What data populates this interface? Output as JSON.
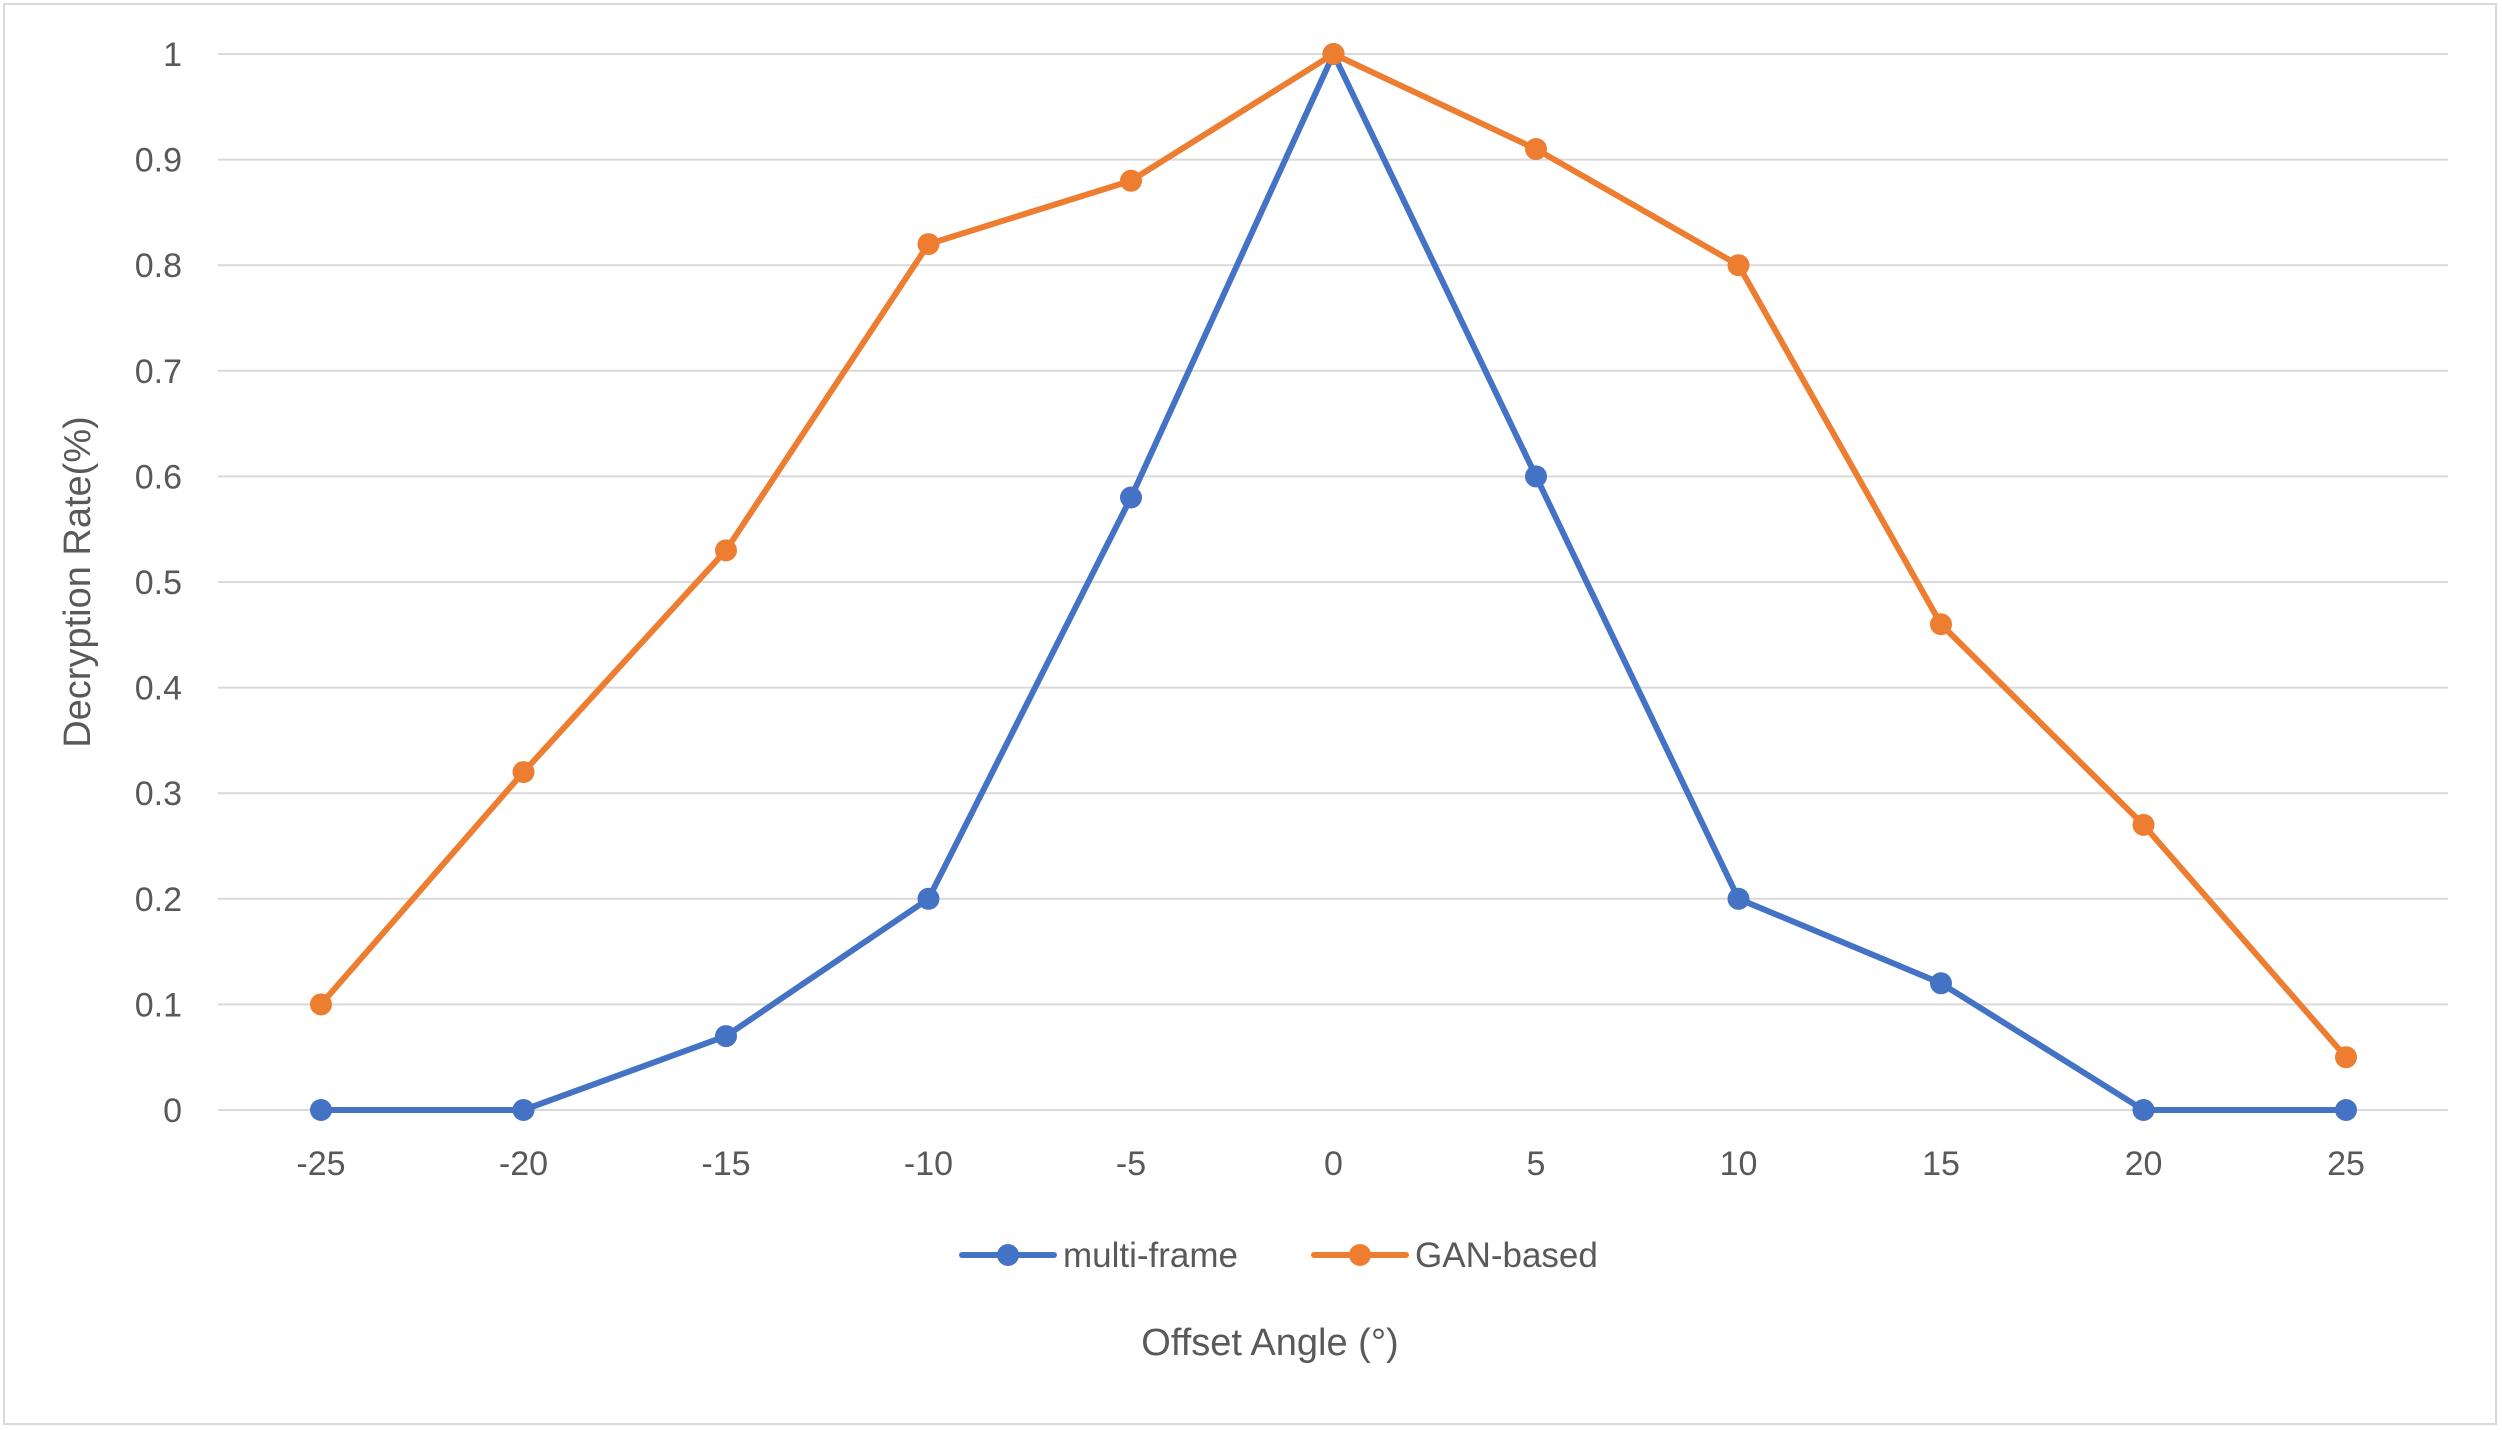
{
  "chart_data": {
    "type": "line",
    "title": "",
    "xlabel": "Offset Angle (°)",
    "ylabel": "Decryption Rate(%)",
    "x": [
      -25,
      -20,
      -15,
      -10,
      -5,
      0,
      5,
      10,
      15,
      20,
      25
    ],
    "x_tick_labels": [
      "-25",
      "-20",
      "-15",
      "-10",
      "-5",
      "0",
      "5",
      "10",
      "15",
      "20",
      "25"
    ],
    "y_ticks": [
      0,
      0.1,
      0.2,
      0.3,
      0.4,
      0.5,
      0.6,
      0.7,
      0.8,
      0.9,
      1
    ],
    "y_tick_labels": [
      "0",
      "0.1",
      "0.2",
      "0.3",
      "0.4",
      "0.5",
      "0.6",
      "0.7",
      "0.8",
      "0.9",
      "1"
    ],
    "ylim": [
      0,
      1
    ],
    "grid": "horizontal",
    "legend_position": "bottom",
    "series": [
      {
        "name": "multi-frame",
        "color": "#4472c4",
        "values": [
          0,
          0,
          0.07,
          0.2,
          0.58,
          1,
          0.6,
          0.2,
          0.12,
          0,
          0
        ]
      },
      {
        "name": "GAN-based",
        "color": "#ed7d31",
        "values": [
          0.1,
          0.32,
          0.53,
          0.82,
          0.88,
          1,
          0.91,
          0.8,
          0.46,
          0.27,
          0.05
        ]
      }
    ]
  }
}
